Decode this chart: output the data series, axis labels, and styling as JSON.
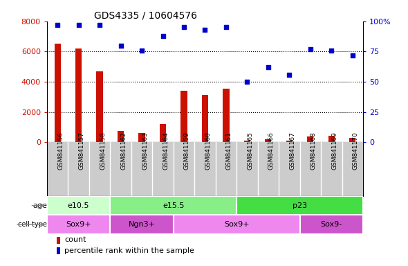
{
  "title": "GDS4335 / 10604576",
  "samples": [
    "GSM841156",
    "GSM841157",
    "GSM841158",
    "GSM841162",
    "GSM841163",
    "GSM841164",
    "GSM841159",
    "GSM841160",
    "GSM841161",
    "GSM841165",
    "GSM841166",
    "GSM841167",
    "GSM841168",
    "GSM841169",
    "GSM841170"
  ],
  "counts": [
    6500,
    6200,
    4700,
    750,
    600,
    1200,
    3400,
    3150,
    3550,
    120,
    200,
    130,
    380,
    430,
    280
  ],
  "percentiles": [
    97,
    97,
    97,
    80,
    76,
    88,
    95,
    93,
    95,
    50,
    62,
    56,
    77,
    76,
    72
  ],
  "ylim_left": [
    0,
    8000
  ],
  "ylim_right": [
    0,
    100
  ],
  "yticks_left": [
    0,
    2000,
    4000,
    6000,
    8000
  ],
  "yticks_right": [
    0,
    25,
    50,
    75,
    100
  ],
  "bar_color": "#cc1100",
  "dot_color": "#0000cc",
  "age_groups": [
    {
      "label": "e10.5",
      "start": 0,
      "end": 3,
      "color": "#ccffcc"
    },
    {
      "label": "e15.5",
      "start": 3,
      "end": 9,
      "color": "#88ee88"
    },
    {
      "label": "p23",
      "start": 9,
      "end": 15,
      "color": "#44dd44"
    }
  ],
  "cell_type_groups": [
    {
      "label": "Sox9+",
      "start": 0,
      "end": 3,
      "color": "#ee88ee"
    },
    {
      "label": "Ngn3+",
      "start": 3,
      "end": 6,
      "color": "#cc55cc"
    },
    {
      "label": "Sox9+",
      "start": 6,
      "end": 12,
      "color": "#ee88ee"
    },
    {
      "label": "Sox9-",
      "start": 12,
      "end": 15,
      "color": "#cc55cc"
    }
  ],
  "legend_count_label": "count",
  "legend_pct_label": "percentile rank within the sample",
  "bar_width": 0.3,
  "label_bg_color": "#cccccc",
  "plot_bg_color": "#ffffff"
}
